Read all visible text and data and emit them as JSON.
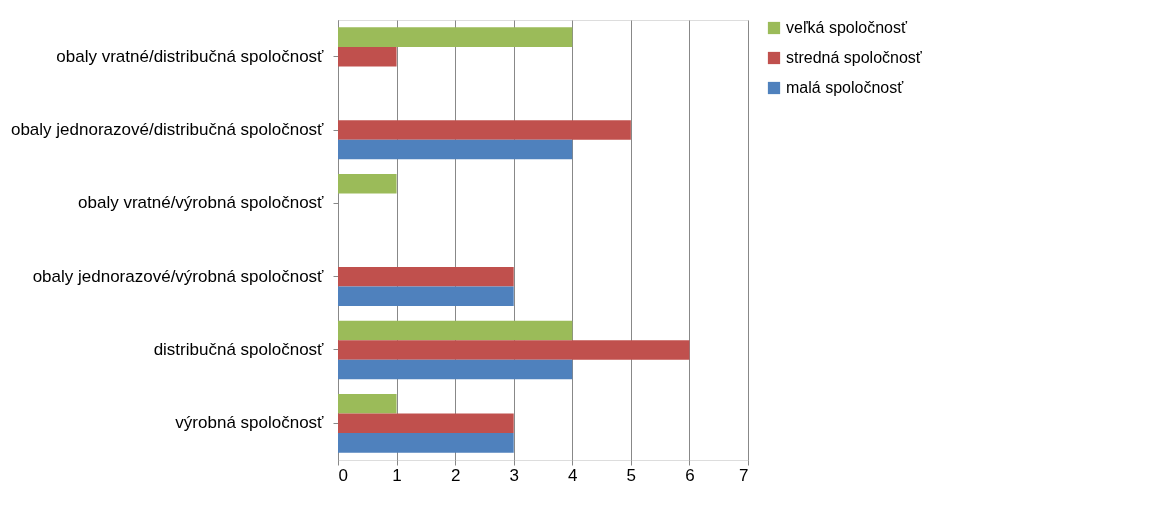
{
  "chart_data": {
    "type": "bar",
    "orientation": "horizontal",
    "categories": [
      "obaly vratné/distribučná spoločnosť",
      "obaly jednorazové/distribučná spoločnosť",
      "obaly vratné/výrobná spoločnosť",
      "obaly jednorazové/výrobná spoločnosť",
      "distribučná spoločnosť",
      "výrobná spoločnosť"
    ],
    "series": [
      {
        "name": "veľká  spoločnosť",
        "color": "#9bbb59",
        "values": [
          4,
          null,
          1,
          null,
          4,
          1
        ]
      },
      {
        "name": "stredná spoločnosť",
        "color": "#c0504d",
        "values": [
          1,
          5,
          null,
          3,
          6,
          3
        ]
      },
      {
        "name": "malá spoločnosť",
        "color": "#4f81bd",
        "values": [
          null,
          4,
          null,
          3,
          4,
          3
        ]
      }
    ],
    "xlim": [
      0,
      7
    ],
    "xticks": [
      0,
      1,
      2,
      3,
      4,
      5,
      6,
      7
    ],
    "grid": "x",
    "legend": "right"
  }
}
